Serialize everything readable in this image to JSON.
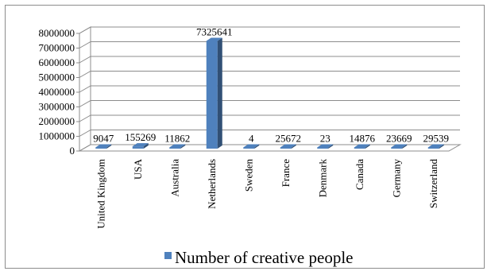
{
  "chart_data": {
    "type": "bar",
    "categories": [
      "United Kingdom",
      "USA",
      "Australia",
      "Netherlands",
      "Sweden",
      "France",
      "Denmark",
      "Canada",
      "Germany",
      "Switzerland"
    ],
    "series": [
      {
        "name": "Number of creative people",
        "values": [
          9047,
          155269,
          11862,
          7325641,
          4,
          25672,
          23,
          14876,
          23669,
          29539
        ],
        "color": "#4f81bd"
      }
    ],
    "data_labels": [
      "9047",
      "155269",
      "11862",
      "7325641",
      "4",
      "25672",
      "23",
      "14876",
      "23669",
      "29539"
    ],
    "y_ticks": [
      "0",
      "1000000",
      "2000000",
      "3000000",
      "4000000",
      "5000000",
      "6000000",
      "7000000",
      "8000000"
    ],
    "ylim": [
      0,
      8000000
    ],
    "grid": true,
    "legend_position": "bottom",
    "three_d": true
  }
}
